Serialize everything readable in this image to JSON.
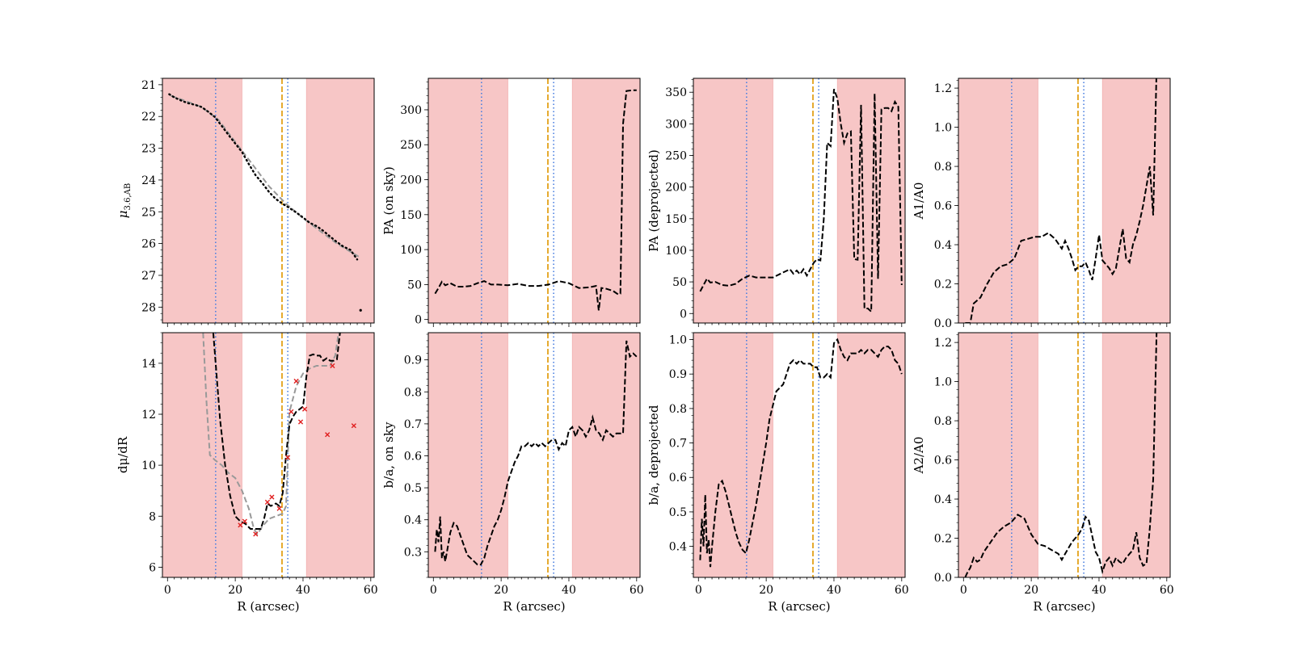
{
  "figure": {
    "shared_x": {
      "xlim": [
        -1.5,
        61
      ],
      "ticks": [
        0,
        20,
        40,
        60
      ],
      "xlabel": "R (arcsec)"
    },
    "shaded_regions": [
      [
        -1.5,
        22
      ],
      [
        41,
        61
      ]
    ],
    "markers": {
      "blue_dotted": [
        14.2,
        35.5
      ],
      "orange_dashed": [
        33.8
      ]
    },
    "colors": {
      "shade": "#f7c6c6",
      "blue": "#4a7fe0",
      "orange": "#e3a21a",
      "line": "#000000",
      "gray": "#999999",
      "red": "#e02020"
    }
  },
  "chart_data": [
    {
      "id": "mu",
      "type": "line",
      "row": 0,
      "col": 0,
      "ylabel": "μ3.6,AB",
      "ylabel_main": "μ",
      "ylabel_sub": "3.6,AB",
      "ylim": [
        28.5,
        20.8
      ],
      "yticks": [
        21,
        22,
        23,
        24,
        25,
        26,
        27,
        28
      ],
      "series": [
        {
          "name": "model",
          "style": "gray-dashed",
          "x": [
            1,
            5,
            10,
            15,
            20,
            25,
            30,
            35,
            40,
            45,
            50,
            57
          ],
          "y": [
            21.35,
            21.5,
            21.7,
            22.1,
            22.8,
            23.5,
            24.2,
            24.75,
            25.2,
            25.6,
            26.0,
            26.45
          ]
        },
        {
          "name": "data",
          "style": "black-dotted",
          "x": [
            0.5,
            2,
            4,
            6,
            8,
            10,
            12,
            14,
            16,
            18,
            20,
            22,
            24,
            26,
            28,
            30,
            32,
            34,
            36,
            38,
            40,
            42,
            44,
            46,
            48,
            50,
            52,
            54,
            56
          ],
          "y": [
            21.3,
            21.4,
            21.5,
            21.58,
            21.63,
            21.7,
            21.85,
            22.02,
            22.3,
            22.58,
            22.85,
            23.12,
            23.5,
            23.85,
            24.1,
            24.38,
            24.6,
            24.75,
            24.88,
            25.02,
            25.18,
            25.35,
            25.45,
            25.6,
            25.78,
            25.95,
            26.1,
            26.2,
            26.5
          ]
        }
      ],
      "points": [
        {
          "x": 57,
          "y": 28.1,
          "color": "black"
        }
      ]
    },
    {
      "id": "pa_sky",
      "type": "line",
      "row": 0,
      "col": 1,
      "ylabel": "PA (on sky)",
      "ylim": [
        -5,
        345
      ],
      "yticks": [
        0,
        50,
        100,
        150,
        200,
        250,
        300
      ],
      "series": [
        {
          "name": "PA",
          "style": "black-dashed",
          "x": [
            0.5,
            1.5,
            2.5,
            3.5,
            5,
            7,
            9,
            11,
            13,
            15,
            17,
            19,
            22,
            25,
            28,
            31,
            34,
            37,
            40,
            43,
            46,
            48,
            48.8,
            49.6,
            51,
            53,
            54.5,
            55.2,
            56,
            57,
            59,
            60
          ],
          "y": [
            37,
            45,
            54,
            49,
            52,
            47,
            47,
            48,
            52,
            55,
            50,
            50,
            49,
            51,
            48,
            48,
            50,
            55,
            52,
            45,
            46,
            48,
            13,
            45,
            44,
            41,
            36,
            37,
            280,
            327,
            328,
            328
          ]
        }
      ]
    },
    {
      "id": "pa_dep",
      "type": "line",
      "row": 0,
      "col": 2,
      "ylabel": "PA (deprojected)",
      "ylim": [
        -15,
        372
      ],
      "yticks": [
        0,
        50,
        100,
        150,
        200,
        250,
        300,
        350
      ],
      "series": [
        {
          "name": "PA_dep",
          "style": "black-dashed",
          "x": [
            0.5,
            1.5,
            2.5,
            3.5,
            5,
            7,
            9,
            11,
            13,
            15,
            17,
            19,
            22,
            25,
            27,
            28,
            29,
            30,
            31,
            32,
            33,
            34,
            35,
            36,
            37,
            38,
            39,
            40,
            41,
            42,
            43,
            44,
            45,
            46,
            47,
            48,
            49,
            50,
            51,
            52,
            53,
            54,
            55,
            56,
            57,
            58,
            59,
            60
          ],
          "y": [
            35,
            45,
            55,
            49,
            50,
            45,
            44,
            47,
            55,
            60,
            57,
            57,
            57,
            65,
            70,
            63,
            68,
            62,
            70,
            60,
            70,
            80,
            86,
            84,
            150,
            270,
            265,
            355,
            340,
            300,
            270,
            285,
            288,
            86,
            85,
            330,
            8,
            8,
            3,
            348,
            55,
            323,
            325,
            325,
            320,
            335,
            327,
            45
          ]
        }
      ]
    },
    {
      "id": "a1",
      "type": "line",
      "row": 0,
      "col": 3,
      "ylabel": "A1/A0",
      "ylim": [
        0,
        1.25
      ],
      "yticks": [
        0.0,
        0.2,
        0.4,
        0.6,
        0.8,
        1.0,
        1.2
      ],
      "series": [
        {
          "name": "A1",
          "style": "black-dashed",
          "x": [
            0.5,
            2,
            3,
            5,
            7,
            9,
            11,
            13,
            15,
            17,
            19,
            21,
            23,
            25,
            27,
            29,
            30,
            31,
            32,
            33,
            34,
            35,
            36,
            37,
            38,
            39,
            40,
            41,
            42,
            43,
            44,
            45,
            46,
            47,
            48,
            49,
            50,
            51,
            52,
            53,
            54,
            55,
            56,
            57
          ],
          "y": [
            0.0,
            0.0,
            0.1,
            0.13,
            0.2,
            0.26,
            0.29,
            0.3,
            0.33,
            0.42,
            0.43,
            0.44,
            0.44,
            0.46,
            0.43,
            0.38,
            0.42,
            0.38,
            0.33,
            0.27,
            0.29,
            0.29,
            0.31,
            0.27,
            0.22,
            0.33,
            0.45,
            0.32,
            0.3,
            0.28,
            0.25,
            0.28,
            0.38,
            0.48,
            0.33,
            0.31,
            0.4,
            0.45,
            0.52,
            0.6,
            0.7,
            0.8,
            0.55,
            1.3
          ]
        }
      ]
    },
    {
      "id": "dmudr",
      "type": "line",
      "row": 1,
      "col": 0,
      "ylabel": "dμ/dR",
      "ylim": [
        5.6,
        15.2
      ],
      "yticks": [
        6,
        8,
        10,
        12,
        14
      ],
      "series": [
        {
          "name": "model",
          "style": "gray-dashed",
          "x": [
            10.5,
            11.5,
            12.5,
            14,
            16,
            18,
            20,
            22,
            24,
            25.5,
            26.5,
            28,
            30,
            32,
            34,
            35,
            36,
            38,
            40,
            42,
            44,
            46,
            48,
            49.5,
            50.5
          ],
          "y": [
            15.2,
            12.5,
            10.4,
            10.2,
            10.0,
            9.7,
            9.5,
            9.0,
            8.3,
            7.5,
            7.3,
            7.6,
            7.9,
            8.0,
            8.1,
            8.4,
            12.1,
            13.1,
            13.6,
            13.8,
            13.9,
            13.9,
            13.9,
            14.3,
            15.2
          ]
        },
        {
          "name": "data",
          "style": "black-dashed",
          "x": [
            13.5,
            14.5,
            15.5,
            17,
            18.5,
            20,
            21.5,
            23,
            24.5,
            26,
            27.5,
            28.5,
            29.5,
            30.5,
            32,
            33,
            34,
            35,
            36,
            37,
            38,
            39,
            40,
            41,
            42,
            43,
            44,
            45,
            46,
            47,
            48,
            49,
            50,
            51
          ],
          "y": [
            15.2,
            13.5,
            11.8,
            10.0,
            8.8,
            8.0,
            7.8,
            7.7,
            7.5,
            7.5,
            7.5,
            7.9,
            8.5,
            8.4,
            8.5,
            8.4,
            8.9,
            10.4,
            11.6,
            11.9,
            12.1,
            12.2,
            12.3,
            13.5,
            14.3,
            14.35,
            14.3,
            14.3,
            14.1,
            14.2,
            14.1,
            14.1,
            14.15,
            15.3
          ]
        }
      ],
      "points": [
        {
          "x": 21.5,
          "y": 7.65
        },
        {
          "x": 22.8,
          "y": 7.8
        },
        {
          "x": 26,
          "y": 7.3
        },
        {
          "x": 29.5,
          "y": 8.55
        },
        {
          "x": 30.8,
          "y": 8.75
        },
        {
          "x": 33,
          "y": 8.3
        },
        {
          "x": 35.5,
          "y": 10.3
        },
        {
          "x": 36.5,
          "y": 12.1
        },
        {
          "x": 38,
          "y": 13.3
        },
        {
          "x": 39.3,
          "y": 11.7
        },
        {
          "x": 40.5,
          "y": 12.2
        },
        {
          "x": 47.2,
          "y": 11.2
        },
        {
          "x": 48.7,
          "y": 13.9
        },
        {
          "x": 55,
          "y": 11.55
        }
      ]
    },
    {
      "id": "ba_sky",
      "type": "line",
      "row": 1,
      "col": 1,
      "ylabel": "b/a, on sky",
      "ylim": [
        0.22,
        0.985
      ],
      "yticks": [
        0.3,
        0.4,
        0.5,
        0.6,
        0.7,
        0.8,
        0.9
      ],
      "series": [
        {
          "name": "ba",
          "style": "black-dashed",
          "x": [
            0.5,
            1,
            1.5,
            2,
            2.5,
            3,
            3.5,
            4,
            5,
            6,
            7,
            8,
            9,
            10,
            11,
            12,
            13,
            14,
            15,
            16,
            17,
            18,
            19,
            20,
            21,
            22,
            23,
            24,
            25,
            26,
            27,
            28,
            29,
            30,
            31,
            32,
            33,
            34,
            35,
            36,
            37,
            38,
            39,
            40,
            41,
            42,
            43,
            44,
            45,
            46,
            47,
            48,
            49,
            50,
            51,
            52,
            53,
            54,
            55,
            56,
            57,
            58,
            59,
            60
          ],
          "y": [
            0.3,
            0.37,
            0.33,
            0.41,
            0.28,
            0.3,
            0.27,
            0.3,
            0.36,
            0.39,
            0.38,
            0.35,
            0.32,
            0.29,
            0.28,
            0.27,
            0.26,
            0.26,
            0.28,
            0.32,
            0.35,
            0.38,
            0.4,
            0.43,
            0.47,
            0.52,
            0.55,
            0.58,
            0.6,
            0.63,
            0.63,
            0.64,
            0.63,
            0.64,
            0.63,
            0.64,
            0.63,
            0.64,
            0.65,
            0.65,
            0.62,
            0.64,
            0.63,
            0.68,
            0.69,
            0.66,
            0.69,
            0.68,
            0.66,
            0.68,
            0.72,
            0.68,
            0.67,
            0.65,
            0.68,
            0.67,
            0.66,
            0.67,
            0.67,
            0.67,
            0.96,
            0.91,
            0.92,
            0.91
          ]
        }
      ]
    },
    {
      "id": "ba_dep",
      "type": "line",
      "row": 1,
      "col": 2,
      "ylabel": "b/a, deprojected",
      "ylim": [
        0.31,
        1.02
      ],
      "yticks": [
        0.4,
        0.5,
        0.6,
        0.7,
        0.8,
        0.9,
        1.0
      ],
      "series": [
        {
          "name": "ba_dep",
          "style": "black-dashed",
          "x": [
            0.5,
            1,
            1.5,
            2,
            2.5,
            3,
            3.5,
            4,
            5,
            6,
            7,
            8,
            9,
            10,
            11,
            12,
            13,
            14,
            15,
            16,
            17,
            18,
            19,
            20,
            21,
            22,
            23,
            24,
            25,
            26,
            27,
            28,
            29,
            30,
            31,
            32,
            33,
            34,
            35,
            36,
            37,
            38,
            39,
            40,
            41,
            42,
            43,
            44,
            45,
            46,
            47,
            48,
            49,
            50,
            51,
            52,
            53,
            54,
            55,
            56,
            57,
            58,
            59,
            60
          ],
          "y": [
            0.36,
            0.48,
            0.4,
            0.55,
            0.38,
            0.42,
            0.34,
            0.4,
            0.5,
            0.58,
            0.59,
            0.56,
            0.52,
            0.48,
            0.44,
            0.41,
            0.39,
            0.38,
            0.42,
            0.47,
            0.52,
            0.58,
            0.64,
            0.7,
            0.77,
            0.81,
            0.85,
            0.86,
            0.87,
            0.9,
            0.93,
            0.94,
            0.93,
            0.94,
            0.93,
            0.93,
            0.93,
            0.92,
            0.92,
            0.89,
            0.89,
            0.9,
            0.89,
            0.99,
            1.0,
            0.97,
            0.95,
            0.94,
            0.96,
            0.96,
            0.96,
            0.97,
            0.96,
            0.97,
            0.97,
            0.96,
            0.95,
            0.97,
            0.98,
            0.98,
            0.97,
            0.94,
            0.93,
            0.9
          ]
        }
      ]
    },
    {
      "id": "a2",
      "type": "line",
      "row": 1,
      "col": 3,
      "ylabel": "A2/A0",
      "ylim": [
        0,
        1.25
      ],
      "yticks": [
        0.0,
        0.2,
        0.4,
        0.6,
        0.8,
        1.0,
        1.2
      ],
      "series": [
        {
          "name": "A2",
          "style": "black-dashed",
          "x": [
            0.5,
            1,
            2,
            3,
            4,
            5,
            6,
            8,
            10,
            12,
            14,
            16,
            18,
            20,
            22,
            24,
            26,
            28,
            29,
            30,
            32,
            34,
            35,
            36,
            37,
            38,
            39,
            40,
            41,
            42,
            43,
            44,
            45,
            46,
            47,
            48,
            49,
            50,
            51,
            52,
            53,
            54,
            55,
            56,
            57
          ],
          "y": [
            0.0,
            0.02,
            0.05,
            0.1,
            0.08,
            0.09,
            0.13,
            0.18,
            0.23,
            0.26,
            0.28,
            0.32,
            0.3,
            0.22,
            0.17,
            0.16,
            0.14,
            0.12,
            0.09,
            0.12,
            0.18,
            0.22,
            0.25,
            0.31,
            0.29,
            0.21,
            0.13,
            0.1,
            0.03,
            0.08,
            0.1,
            0.06,
            0.1,
            0.08,
            0.07,
            0.1,
            0.12,
            0.14,
            0.23,
            0.1,
            0.06,
            0.07,
            0.25,
            0.5,
            1.25
          ]
        }
      ]
    }
  ]
}
